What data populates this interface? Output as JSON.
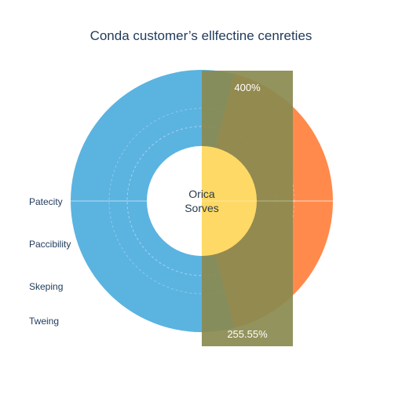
{
  "chart_data": {
    "type": "pie",
    "title": "Conda customer’s ellfectine cenreties",
    "center_label": [
      "Orica",
      "Sorves"
    ],
    "row_labels": [
      "Patecity",
      "Paccibility",
      "Skeping",
      "Tweing"
    ],
    "slices": [
      {
        "name": "",
        "value": 58,
        "color": "#5bb3e0"
      },
      {
        "name": "",
        "value": 42,
        "color": "#ff8a4c"
      }
    ],
    "overlay_bar": {
      "color": "#8a8a50",
      "inner_color": "#ffd966",
      "top_label": "400%",
      "bottom_label": "255.55%"
    },
    "grid": true,
    "legend": "none"
  }
}
